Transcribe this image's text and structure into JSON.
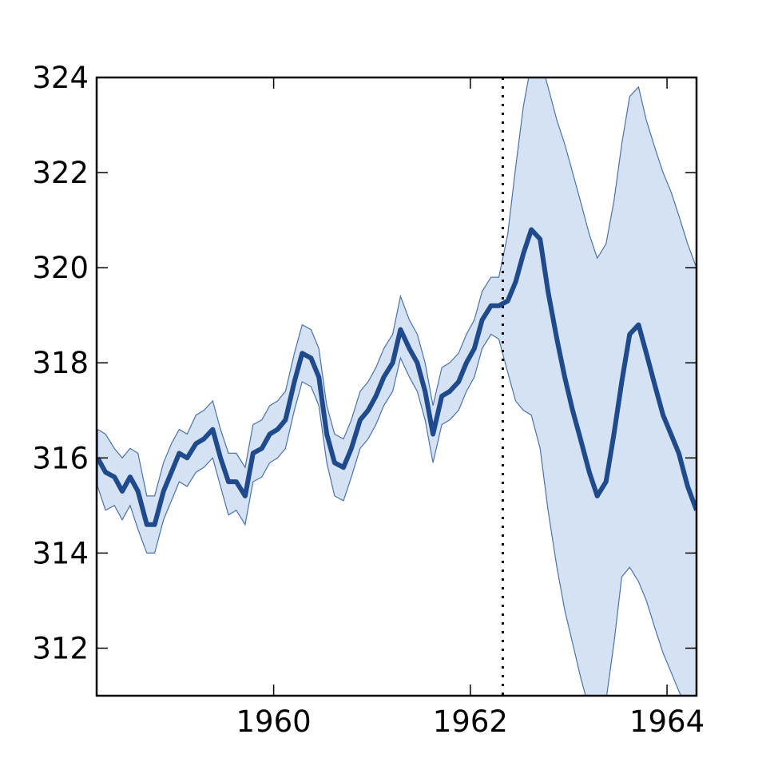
{
  "chart_data": {
    "type": "line",
    "title": "",
    "xlabel": "",
    "ylabel": "",
    "xlim": [
      1958.2,
      1964.3
    ],
    "ylim": [
      311,
      324
    ],
    "grid": false,
    "legend": "none",
    "x_ticks": [
      1960,
      1962,
      1964
    ],
    "x_tick_labels": [
      "1960",
      "1962",
      "1964"
    ],
    "y_ticks": [
      312,
      314,
      316,
      318,
      320,
      322,
      324
    ],
    "y_tick_labels": [
      "312",
      "314",
      "316",
      "318",
      "320",
      "322",
      "324"
    ],
    "forecast_start": 1962.33,
    "colors": {
      "line": "#1f4a8c",
      "band_fill": "#d4e2f3",
      "band_edge": "#4a73aa",
      "divider": "#000000"
    },
    "series": [
      {
        "x": [
          1958.21,
          1958.29,
          1958.38,
          1958.46,
          1958.54,
          1958.62,
          1958.71,
          1958.79,
          1958.88,
          1958.96,
          1959.04,
          1959.12,
          1959.21,
          1959.29,
          1959.38,
          1959.46,
          1959.54,
          1959.62,
          1959.71,
          1959.79,
          1959.88,
          1959.96,
          1960.04,
          1960.12,
          1960.21,
          1960.29,
          1960.38,
          1960.46,
          1960.54,
          1960.62,
          1960.71,
          1960.79,
          1960.88,
          1960.96,
          1961.04,
          1961.12,
          1961.21,
          1961.29,
          1961.38,
          1961.46,
          1961.54,
          1961.62,
          1961.71,
          1961.79,
          1961.88,
          1961.96,
          1962.04,
          1962.12,
          1962.21,
          1962.29,
          1962.38,
          1962.46,
          1962.54,
          1962.62,
          1962.71,
          1962.79,
          1962.88,
          1962.96,
          1963.04,
          1963.12,
          1963.21,
          1963.29,
          1963.38,
          1963.46,
          1963.54,
          1963.62,
          1963.71,
          1963.79,
          1963.88,
          1963.96,
          1964.04,
          1964.12,
          1964.21,
          1964.3
        ],
        "values": [
          316.0,
          315.7,
          315.6,
          315.3,
          315.6,
          315.3,
          314.6,
          314.6,
          315.3,
          315.7,
          316.1,
          316.0,
          316.3,
          316.4,
          316.6,
          316.0,
          315.5,
          315.5,
          315.2,
          316.1,
          316.2,
          316.5,
          316.6,
          316.8,
          317.6,
          318.2,
          318.1,
          317.7,
          316.5,
          315.9,
          315.8,
          316.2,
          316.8,
          317.0,
          317.3,
          317.7,
          318.0,
          318.7,
          318.3,
          318.0,
          317.4,
          316.5,
          317.3,
          317.4,
          317.6,
          318.0,
          318.3,
          318.9,
          319.2,
          319.2,
          319.3,
          319.7,
          320.3,
          320.8,
          320.6,
          319.5,
          318.5,
          317.7,
          317.0,
          316.4,
          315.7,
          315.2,
          315.5,
          316.5,
          317.6,
          318.6,
          318.8,
          318.2,
          317.5,
          316.9,
          316.5,
          316.1,
          315.4,
          314.9
        ]
      }
    ],
    "interval": {
      "upper": [
        316.6,
        316.5,
        316.2,
        316.0,
        316.2,
        316.1,
        315.2,
        315.2,
        315.9,
        316.3,
        316.6,
        316.5,
        316.9,
        317.0,
        317.2,
        316.6,
        316.1,
        316.1,
        315.8,
        316.7,
        316.8,
        317.1,
        317.2,
        317.4,
        318.2,
        318.8,
        318.7,
        318.3,
        317.1,
        316.5,
        316.4,
        316.8,
        317.4,
        317.6,
        317.9,
        318.3,
        318.6,
        319.4,
        318.9,
        318.6,
        318.0,
        317.1,
        317.9,
        318.0,
        318.2,
        318.6,
        318.9,
        319.5,
        319.8,
        319.8,
        320.7,
        322.1,
        323.4,
        324.3,
        324.4,
        323.8,
        323.1,
        322.6,
        322.0,
        321.4,
        320.7,
        320.2,
        320.5,
        321.4,
        322.6,
        323.6,
        323.8,
        323.1,
        322.5,
        322.0,
        321.6,
        321.1,
        320.5,
        320.0
      ],
      "lower": [
        315.4,
        314.9,
        315.0,
        314.7,
        315.0,
        314.5,
        314.0,
        314.0,
        314.7,
        315.1,
        315.5,
        315.4,
        315.7,
        315.8,
        316.0,
        315.4,
        314.8,
        314.9,
        314.6,
        315.5,
        315.6,
        315.9,
        316.0,
        316.2,
        317.0,
        317.6,
        317.5,
        317.1,
        315.9,
        315.2,
        315.1,
        315.6,
        316.2,
        316.4,
        316.7,
        317.1,
        317.4,
        318.1,
        317.7,
        317.4,
        316.8,
        315.9,
        316.7,
        316.8,
        317.0,
        317.4,
        317.7,
        318.3,
        318.6,
        318.5,
        317.8,
        317.2,
        317.0,
        316.9,
        316.2,
        314.9,
        313.7,
        312.8,
        312.1,
        311.4,
        310.7,
        310.5,
        310.9,
        312.1,
        313.5,
        313.7,
        313.4,
        313.0,
        312.4,
        311.9,
        311.5,
        311.1,
        310.7,
        310.4
      ]
    }
  }
}
